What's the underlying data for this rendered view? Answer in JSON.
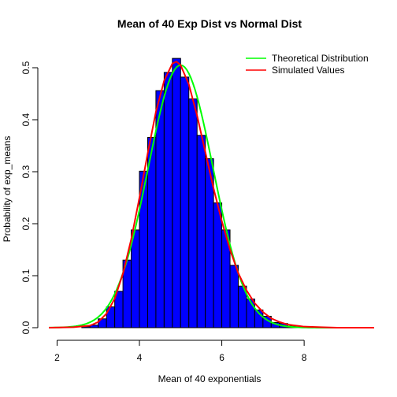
{
  "chart_data": {
    "type": "bar",
    "title": "Mean of 40 Exp Dist vs Normal Dist",
    "xlabel": "Mean of 40 exponentials",
    "ylabel": "Probability of exp_means",
    "xlim": [
      1.8,
      9.7
    ],
    "ylim": [
      0,
      0.52
    ],
    "x_ticks": [
      "2",
      "4",
      "6",
      "8"
    ],
    "y_ticks": [
      "0.0",
      "0.1",
      "0.2",
      "0.3",
      "0.4",
      "0.5"
    ],
    "grid": false,
    "legend_position": "top-right",
    "bin_width": 0.2,
    "bar_color": "#0000ff",
    "bar_edge_color": "#000000",
    "bins": [
      {
        "x0": 2.6,
        "x1": 2.8,
        "y": 0.002
      },
      {
        "x0": 2.8,
        "x1": 3.0,
        "y": 0.005
      },
      {
        "x0": 3.0,
        "x1": 3.2,
        "y": 0.017
      },
      {
        "x0": 3.2,
        "x1": 3.4,
        "y": 0.04
      },
      {
        "x0": 3.4,
        "x1": 3.6,
        "y": 0.07
      },
      {
        "x0": 3.6,
        "x1": 3.8,
        "y": 0.13
      },
      {
        "x0": 3.8,
        "x1": 4.0,
        "y": 0.188
      },
      {
        "x0": 4.0,
        "x1": 4.2,
        "y": 0.301
      },
      {
        "x0": 4.2,
        "x1": 4.4,
        "y": 0.366
      },
      {
        "x0": 4.4,
        "x1": 4.6,
        "y": 0.456
      },
      {
        "x0": 4.6,
        "x1": 4.8,
        "y": 0.491
      },
      {
        "x0": 4.8,
        "x1": 5.0,
        "y": 0.518
      },
      {
        "x0": 5.0,
        "x1": 5.2,
        "y": 0.482
      },
      {
        "x0": 5.2,
        "x1": 5.4,
        "y": 0.44
      },
      {
        "x0": 5.4,
        "x1": 5.6,
        "y": 0.37
      },
      {
        "x0": 5.6,
        "x1": 5.8,
        "y": 0.325
      },
      {
        "x0": 5.8,
        "x1": 6.0,
        "y": 0.24
      },
      {
        "x0": 6.0,
        "x1": 6.2,
        "y": 0.188
      },
      {
        "x0": 6.2,
        "x1": 6.4,
        "y": 0.12
      },
      {
        "x0": 6.4,
        "x1": 6.6,
        "y": 0.08
      },
      {
        "x0": 6.6,
        "x1": 6.8,
        "y": 0.055
      },
      {
        "x0": 6.8,
        "x1": 7.0,
        "y": 0.034
      },
      {
        "x0": 7.0,
        "x1": 7.2,
        "y": 0.022
      },
      {
        "x0": 7.2,
        "x1": 7.4,
        "y": 0.01
      },
      {
        "x0": 7.4,
        "x1": 7.6,
        "y": 0.008
      },
      {
        "x0": 7.6,
        "x1": 7.8,
        "y": 0.003
      },
      {
        "x0": 7.8,
        "x1": 8.0,
        "y": 0.002
      }
    ],
    "series": [
      {
        "name": "Theoretical Distribution",
        "color": "#00ff00",
        "mean": 5.0,
        "sd": 0.79
      },
      {
        "name": "Simulated Values",
        "color": "#ff0000",
        "x": [
          1.8,
          2.4,
          2.8,
          3.0,
          3.2,
          3.4,
          3.6,
          3.8,
          4.0,
          4.2,
          4.4,
          4.6,
          4.8,
          4.9,
          5.0,
          5.2,
          5.4,
          5.6,
          5.8,
          6.0,
          6.2,
          6.4,
          6.6,
          6.8,
          7.0,
          7.2,
          7.4,
          7.6,
          7.8,
          8.0,
          8.4,
          8.8,
          9.2,
          9.7
        ],
        "y": [
          0.0,
          0.001,
          0.004,
          0.011,
          0.027,
          0.056,
          0.104,
          0.17,
          0.25,
          0.335,
          0.415,
          0.475,
          0.508,
          0.512,
          0.505,
          0.468,
          0.408,
          0.338,
          0.268,
          0.205,
          0.15,
          0.105,
          0.072,
          0.047,
          0.03,
          0.018,
          0.011,
          0.006,
          0.004,
          0.002,
          0.001,
          0.0,
          0.0,
          0.0
        ]
      }
    ]
  }
}
